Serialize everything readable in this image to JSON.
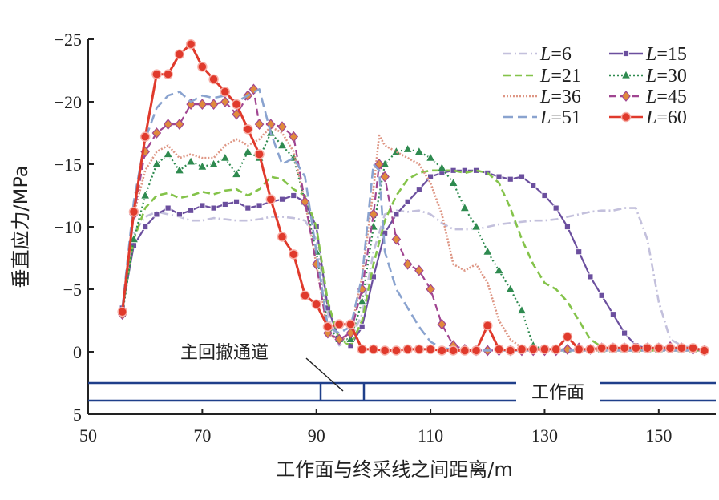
{
  "chart_data": {
    "type": "line",
    "xlabel": "工作面与终采线之间距离/m",
    "ylabel": "垂直应力/MPa",
    "xlim": [
      50,
      160
    ],
    "ylim": [
      5,
      -25
    ],
    "y_inverted": true,
    "xticks": [
      50,
      70,
      90,
      110,
      130,
      150
    ],
    "xtick_labels": [
      "50",
      "70",
      "90",
      "110",
      "130",
      "150"
    ],
    "yticks": [
      -25,
      -20,
      -15,
      -10,
      -5,
      0,
      5
    ],
    "ytick_labels": [
      "−25",
      "−20",
      "−15",
      "−10",
      "−5",
      "0",
      "5"
    ],
    "legend_position": "top-right",
    "grid": false,
    "annotations": {
      "roadway_label": "主回撤通道",
      "face_label": "工作面"
    },
    "series": [
      {
        "name": "L=6",
        "legend_prefix": "L",
        "legend_value": "=6",
        "color": "#c3c0dc",
        "dash": "10,4,2,4",
        "marker": "none",
        "x": [
          56,
          58,
          60,
          62,
          64,
          66,
          68,
          70,
          72,
          74,
          76,
          78,
          80,
          82,
          84,
          86,
          88,
          90,
          92,
          94,
          96,
          98,
          100,
          102,
          104,
          106,
          108,
          110,
          112,
          114,
          116,
          118,
          120,
          122,
          124,
          126,
          128,
          130,
          132,
          134,
          136,
          138,
          140,
          142,
          144,
          146,
          148,
          150,
          152,
          154,
          156,
          158
        ],
        "y": [
          -3.5,
          -9.5,
          -10.8,
          -11.2,
          -11,
          -10.8,
          -10.5,
          -10.5,
          -10.7,
          -10.6,
          -10.5,
          -10.5,
          -10.6,
          -10.8,
          -10.8,
          -10.7,
          -10.5,
          -9,
          -3,
          -0.5,
          -1,
          -3,
          -8,
          -11,
          -11.3,
          -11.2,
          -11.3,
          -11,
          -10.3,
          -9.8,
          -9.8,
          -9.8,
          -10,
          -10.2,
          -10.3,
          -10.4,
          -10.5,
          -10.5,
          -10.6,
          -10.8,
          -11,
          -11.2,
          -11.3,
          -11.3,
          -11.5,
          -11.5,
          -9,
          -4,
          -1,
          -0.5,
          -0.3,
          -0.2
        ]
      },
      {
        "name": "L=15",
        "legend_prefix": "L",
        "legend_value": "=15",
        "color": "#6b4f9e",
        "dash": "",
        "marker": "square",
        "x": [
          56,
          58,
          60,
          62,
          64,
          66,
          68,
          70,
          72,
          74,
          76,
          78,
          80,
          82,
          84,
          86,
          88,
          90,
          92,
          94,
          96,
          98,
          100,
          102,
          104,
          106,
          108,
          110,
          112,
          114,
          116,
          118,
          120,
          122,
          124,
          126,
          128,
          130,
          132,
          134,
          136,
          138,
          140,
          142,
          144,
          146,
          148,
          150,
          152,
          154,
          156,
          158
        ],
        "y": [
          -3.5,
          -8.5,
          -10,
          -11,
          -11.5,
          -11,
          -11.3,
          -11.7,
          -11.5,
          -11.8,
          -12,
          -11.5,
          -11.7,
          -12,
          -12.2,
          -12.5,
          -12,
          -10,
          -3.5,
          -1,
          -0.5,
          -2,
          -6,
          -9.5,
          -11,
          -12,
          -13,
          -14,
          -14.3,
          -14.5,
          -14.5,
          -14.5,
          -14.3,
          -14,
          -13.8,
          -14,
          -13.3,
          -12.5,
          -11.5,
          -10,
          -8,
          -6,
          -4.5,
          -3,
          -1.5,
          -0.5,
          -0.3,
          -0.2,
          -0.1,
          -0.1,
          -0.1,
          -0.1
        ]
      },
      {
        "name": "L=21",
        "legend_prefix": "L",
        "legend_value": "=21",
        "color": "#84c34a",
        "dash": "9,5",
        "marker": "none",
        "x": [
          56,
          58,
          60,
          62,
          64,
          66,
          68,
          70,
          72,
          74,
          76,
          78,
          80,
          82,
          84,
          86,
          88,
          90,
          92,
          94,
          96,
          98,
          100,
          102,
          104,
          106,
          108,
          110,
          112,
          114,
          116,
          118,
          120,
          122,
          124,
          126,
          128,
          130,
          132,
          134,
          136,
          138,
          140,
          142,
          144,
          146,
          148,
          150,
          152,
          154,
          156,
          158
        ],
        "y": [
          -3.5,
          -9,
          -11.5,
          -12.5,
          -12.7,
          -12.3,
          -12.5,
          -12.8,
          -12.6,
          -12.9,
          -13,
          -12.5,
          -13,
          -14,
          -13.8,
          -13,
          -12.5,
          -10,
          -4,
          -1,
          -0.5,
          -2.5,
          -7,
          -10.5,
          -12.5,
          -13.8,
          -14.3,
          -14.5,
          -14.5,
          -14.5,
          -14.3,
          -14.5,
          -14.3,
          -13.5,
          -11.5,
          -9,
          -7,
          -5.5,
          -5,
          -4,
          -2.5,
          -1,
          -0.4,
          -0.2,
          -0.1,
          -0.1,
          -0.1,
          -0.1,
          -0.1,
          -0.1,
          -0.1,
          -0.1
        ]
      },
      {
        "name": "L=30",
        "legend_prefix": "L",
        "legend_value": "=30",
        "color": "#2e8a4f",
        "dash": "2,3",
        "marker": "triangle",
        "x": [
          56,
          58,
          60,
          62,
          64,
          66,
          68,
          70,
          72,
          74,
          76,
          78,
          80,
          82,
          84,
          86,
          88,
          90,
          92,
          94,
          96,
          98,
          100,
          102,
          104,
          106,
          108,
          110,
          112,
          114,
          116,
          118,
          120,
          122,
          124,
          126,
          128,
          130,
          132,
          134,
          136,
          138,
          140,
          142,
          144,
          146,
          148,
          150,
          152,
          154,
          156,
          158
        ],
        "y": [
          -3,
          -9,
          -12.5,
          -15,
          -15.8,
          -14.5,
          -15.2,
          -14.8,
          -15,
          -15.5,
          -14.2,
          -16,
          -15.5,
          -17.5,
          -16.5,
          -15.5,
          -12,
          -8,
          -2,
          -1,
          -1,
          -4,
          -10,
          -15,
          -16,
          -16.2,
          -16,
          -15.5,
          -14.7,
          -13.5,
          -11.5,
          -10,
          -8,
          -6.5,
          -5,
          -3.3,
          -0.5,
          -0.2,
          -0.2,
          -0.2,
          -0.2,
          -0.2,
          -0.2,
          -0.2,
          -0.2,
          -0.2,
          -0.2,
          -0.2,
          -0.3,
          -0.2,
          -0.2,
          -0.1
        ]
      },
      {
        "name": "L=36",
        "legend_prefix": "L",
        "legend_value": "=36",
        "color": "#de9684",
        "dash": "2,2",
        "marker": "none",
        "x": [
          56,
          58,
          60,
          62,
          64,
          66,
          68,
          70,
          72,
          74,
          76,
          78,
          80,
          82,
          84,
          86,
          88,
          90,
          92,
          94,
          96,
          98,
          100,
          101,
          102,
          104,
          106,
          108,
          110,
          112,
          114,
          116,
          118,
          120,
          122,
          124,
          126,
          128,
          130,
          132,
          134,
          136,
          138,
          140,
          142,
          144,
          146,
          148,
          150,
          152,
          154,
          156,
          158
        ],
        "y": [
          -3.5,
          -11,
          -14.5,
          -16,
          -16.5,
          -15.5,
          -15.8,
          -15.5,
          -15.5,
          -16.5,
          -17,
          -16.5,
          -17,
          -18,
          -17.5,
          -16,
          -12,
          -7,
          -1.5,
          -0.8,
          -1.5,
          -6,
          -13,
          -17.3,
          -16.5,
          -16,
          -15.5,
          -15,
          -13.5,
          -11,
          -7,
          -6.5,
          -7,
          -5.5,
          -2.5,
          -1,
          -0.3,
          -0.2,
          -0.1,
          -0.1,
          -0.1,
          -0.1,
          -0.1,
          -0.1,
          -0.1,
          -0.1,
          -0.1,
          -0.1,
          -0.1,
          -0.1,
          -0.1,
          -0.1,
          -0.1
        ]
      },
      {
        "name": "L=45",
        "legend_prefix": "L",
        "legend_value": "=45",
        "color": "#a04591",
        "dash": "9,5",
        "marker": "diamond",
        "x": [
          56,
          58,
          60,
          62,
          64,
          66,
          68,
          70,
          72,
          74,
          76,
          78,
          79,
          80,
          82,
          84,
          86,
          88,
          90,
          92,
          94,
          96,
          98,
          100,
          101,
          102,
          104,
          106,
          108,
          110,
          112,
          114,
          116,
          118,
          120,
          122,
          124,
          126,
          128,
          130,
          132,
          134,
          136,
          138,
          140,
          142,
          144,
          146,
          148,
          150,
          152,
          154,
          156,
          158
        ],
        "y": [
          -3,
          -11,
          -16,
          -17.5,
          -18.2,
          -18.2,
          -19.8,
          -19.8,
          -19.8,
          -20,
          -19,
          -20.5,
          -21,
          -18.2,
          -18.2,
          -18,
          -17.2,
          -12,
          -7,
          -1.5,
          -1,
          -1.5,
          -5,
          -11,
          -15,
          -14,
          -9,
          -7,
          -6.5,
          -5,
          -2.2,
          -0.5,
          -0.2,
          -0.1,
          -0.1,
          -0.1,
          -0.1,
          -0.1,
          -0.1,
          -0.1,
          -0.1,
          -0.2,
          -0.3,
          -0.2,
          -0.3,
          -0.3,
          -0.3,
          -0.3,
          -0.3,
          -0.3,
          -0.4,
          -0.3,
          -0.2,
          -0.1
        ]
      },
      {
        "name": "L=51",
        "legend_prefix": "L",
        "legend_value": "=51",
        "color": "#8aa3cf",
        "dash": "12,6",
        "marker": "none",
        "x": [
          56,
          58,
          60,
          62,
          64,
          66,
          68,
          70,
          72,
          74,
          76,
          78,
          80,
          82,
          84,
          86,
          88,
          90,
          92,
          94,
          96,
          98,
          100,
          101,
          102,
          104,
          106,
          108,
          110,
          112,
          114,
          116,
          118,
          120,
          122,
          124,
          126,
          128,
          130,
          132,
          134,
          136,
          138,
          140,
          142,
          144,
          146,
          148,
          150,
          152,
          154,
          156,
          158
        ],
        "y": [
          -3.5,
          -12,
          -17,
          -19.5,
          -20.5,
          -20.8,
          -20,
          -20.5,
          -20.3,
          -20.5,
          -20,
          -20.5,
          -21,
          -17.5,
          -15,
          -15.5,
          -14,
          -8,
          -2,
          -1.5,
          -2,
          -6,
          -15,
          -14.5,
          -8,
          -5,
          -3.5,
          -2,
          -0.8,
          -0.3,
          -0.2,
          -0.1,
          -0.1,
          -0.1,
          -0.1,
          -0.1,
          -0.1,
          -0.1,
          -0.1,
          -0.1,
          -0.1,
          -0.1,
          -0.1,
          -0.1,
          -0.1,
          -0.1,
          -0.1,
          -0.1,
          -0.1,
          -0.1,
          -0.1,
          -0.1,
          -0.1
        ]
      },
      {
        "name": "L=60",
        "legend_prefix": "L",
        "legend_value": "=60",
        "color": "#e03a2c",
        "dash": "",
        "marker": "circle",
        "x": [
          56,
          58,
          60,
          62,
          64,
          66,
          68,
          70,
          72,
          74,
          76,
          78,
          80,
          82,
          84,
          86,
          88,
          90,
          92,
          94,
          96,
          98,
          100,
          102,
          104,
          106,
          108,
          110,
          112,
          114,
          116,
          118,
          120,
          122,
          124,
          126,
          128,
          130,
          132,
          134,
          136,
          138,
          140,
          142,
          144,
          146,
          148,
          150,
          152,
          154,
          156,
          158
        ],
        "y": [
          -3.2,
          -11.2,
          -17.2,
          -22.2,
          -22.2,
          -23.8,
          -24.6,
          -22.8,
          -21.8,
          -20.8,
          -19.8,
          -17.8,
          -15.8,
          -12.2,
          -9.2,
          -7.8,
          -4.5,
          -3.8,
          -2,
          -2.2,
          -2.2,
          -0.2,
          -0.2,
          -0.1,
          -0.1,
          -0.2,
          -0.2,
          -0.2,
          -0.1,
          -0.1,
          -0.1,
          -0.1,
          -2.1,
          -0.2,
          -0.1,
          -0.2,
          -0.2,
          -0.2,
          -0.2,
          -1.2,
          -0.2,
          -0.2,
          -0.3,
          -0.3,
          -0.3,
          -0.3,
          -0.3,
          -0.3,
          -0.3,
          -0.3,
          -0.3,
          -0.1
        ]
      }
    ]
  }
}
